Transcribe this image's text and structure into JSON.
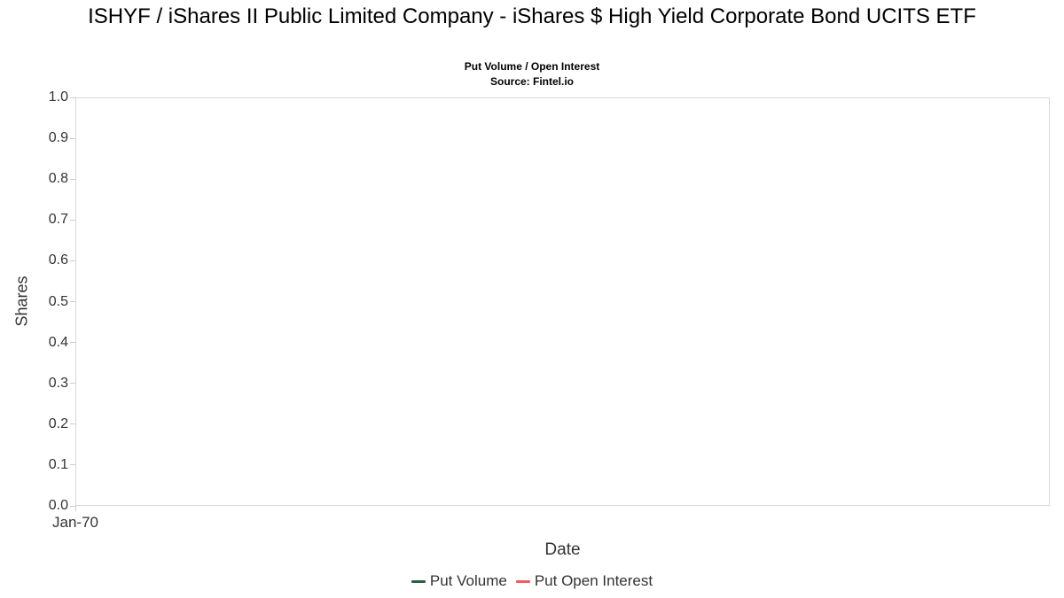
{
  "header": {
    "title": "ISHYF / iShares II Public Limited Company - iShares $ High Yield Corporate Bond UCITS ETF",
    "subtitle": "Put Volume / Open Interest",
    "source": "Source: Fintel.io"
  },
  "axes": {
    "y_title": "Shares",
    "x_title": "Date",
    "y_ticks": [
      "1.0",
      "0.9",
      "0.8",
      "0.7",
      "0.6",
      "0.5",
      "0.4",
      "0.3",
      "0.2",
      "0.1",
      "0.0"
    ],
    "x_ticks": [
      "Jan-70"
    ],
    "x_first_tick": "Jan-70"
  },
  "legend": {
    "items": [
      {
        "label": "Put Volume",
        "color": "#2e5e41"
      },
      {
        "label": "Put Open Interest",
        "color": "#f45b5b"
      }
    ]
  },
  "chart_data": {
    "type": "line",
    "title": "ISHYF / iShares II Public Limited Company - iShares $ High Yield Corporate Bond UCITS ETF",
    "subtitle": "Put Volume / Open Interest",
    "source": "Source: Fintel.io",
    "xlabel": "Date",
    "ylabel": "Shares",
    "ylim": [
      0.0,
      1.0
    ],
    "y_tick_step": 0.1,
    "x_tick_labels": [
      "Jan-70"
    ],
    "grid": false,
    "legend_position": "bottom",
    "series": [
      {
        "name": "Put Volume",
        "color": "#2e5e41",
        "x": [],
        "values": []
      },
      {
        "name": "Put Open Interest",
        "color": "#f45b5b",
        "x": [],
        "values": []
      }
    ],
    "note": "Plot area is empty; no data points are rendered in the screenshot."
  }
}
